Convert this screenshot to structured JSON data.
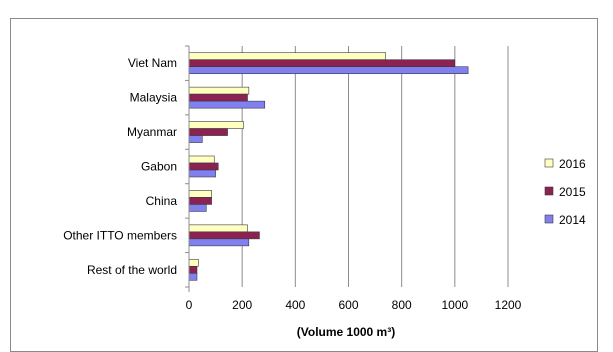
{
  "chart_data": {
    "type": "bar",
    "orientation": "horizontal",
    "categories": [
      "Viet Nam",
      "Malaysia",
      "Myanmar",
      "Gabon",
      "China",
      "Other ITTO members",
      "Rest of the world"
    ],
    "series": [
      {
        "name": "2016",
        "color": "#FFFFC0",
        "values": [
          740,
          225,
          205,
          95,
          85,
          220,
          35
        ]
      },
      {
        "name": "2015",
        "color": "#8B2252",
        "values": [
          1000,
          220,
          145,
          110,
          85,
          265,
          30
        ]
      },
      {
        "name": "2014",
        "color": "#8080F0",
        "values": [
          1050,
          285,
          50,
          100,
          65,
          225,
          30
        ]
      }
    ],
    "xlabel": "(Volume 1000 m³)",
    "xlim": [
      0,
      1200
    ],
    "xticks": [
      0,
      200,
      400,
      600,
      800,
      1000,
      1200
    ],
    "grid": true,
    "legend_position": "right"
  }
}
